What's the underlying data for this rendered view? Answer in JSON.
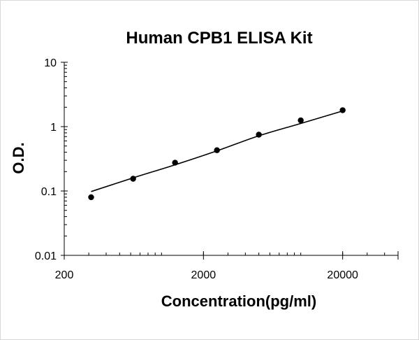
{
  "chart_data": {
    "type": "scatter",
    "title": "Human CPB1 ELISA Kit",
    "xlabel": "Concentration(pg/ml)",
    "ylabel": "O.D.",
    "xscale": "log",
    "yscale": "log",
    "xlim": [
      200,
      50000
    ],
    "ylim": [
      0.01,
      10
    ],
    "x_ticks": [
      200,
      2000,
      20000
    ],
    "x_tick_labels": [
      "200",
      "2000",
      "20000"
    ],
    "y_ticks": [
      0.01,
      0.1,
      1,
      10
    ],
    "y_tick_labels": [
      "0.01",
      "0.1",
      "1",
      "10"
    ],
    "grid": false,
    "legend": "none",
    "series": [
      {
        "marker_color": "#000000",
        "x": [
          312,
          625,
          1250,
          2500,
          5000,
          10000,
          20000
        ],
        "y": [
          0.08,
          0.155,
          0.275,
          0.43,
          0.75,
          1.25,
          1.8
        ]
      }
    ],
    "fit_curve": {
      "color": "#000000",
      "x": [
        312,
        625,
        1250,
        2500,
        5000,
        10000,
        20000
      ],
      "y": [
        0.098,
        0.16,
        0.255,
        0.42,
        0.72,
        1.12,
        1.75
      ]
    }
  }
}
